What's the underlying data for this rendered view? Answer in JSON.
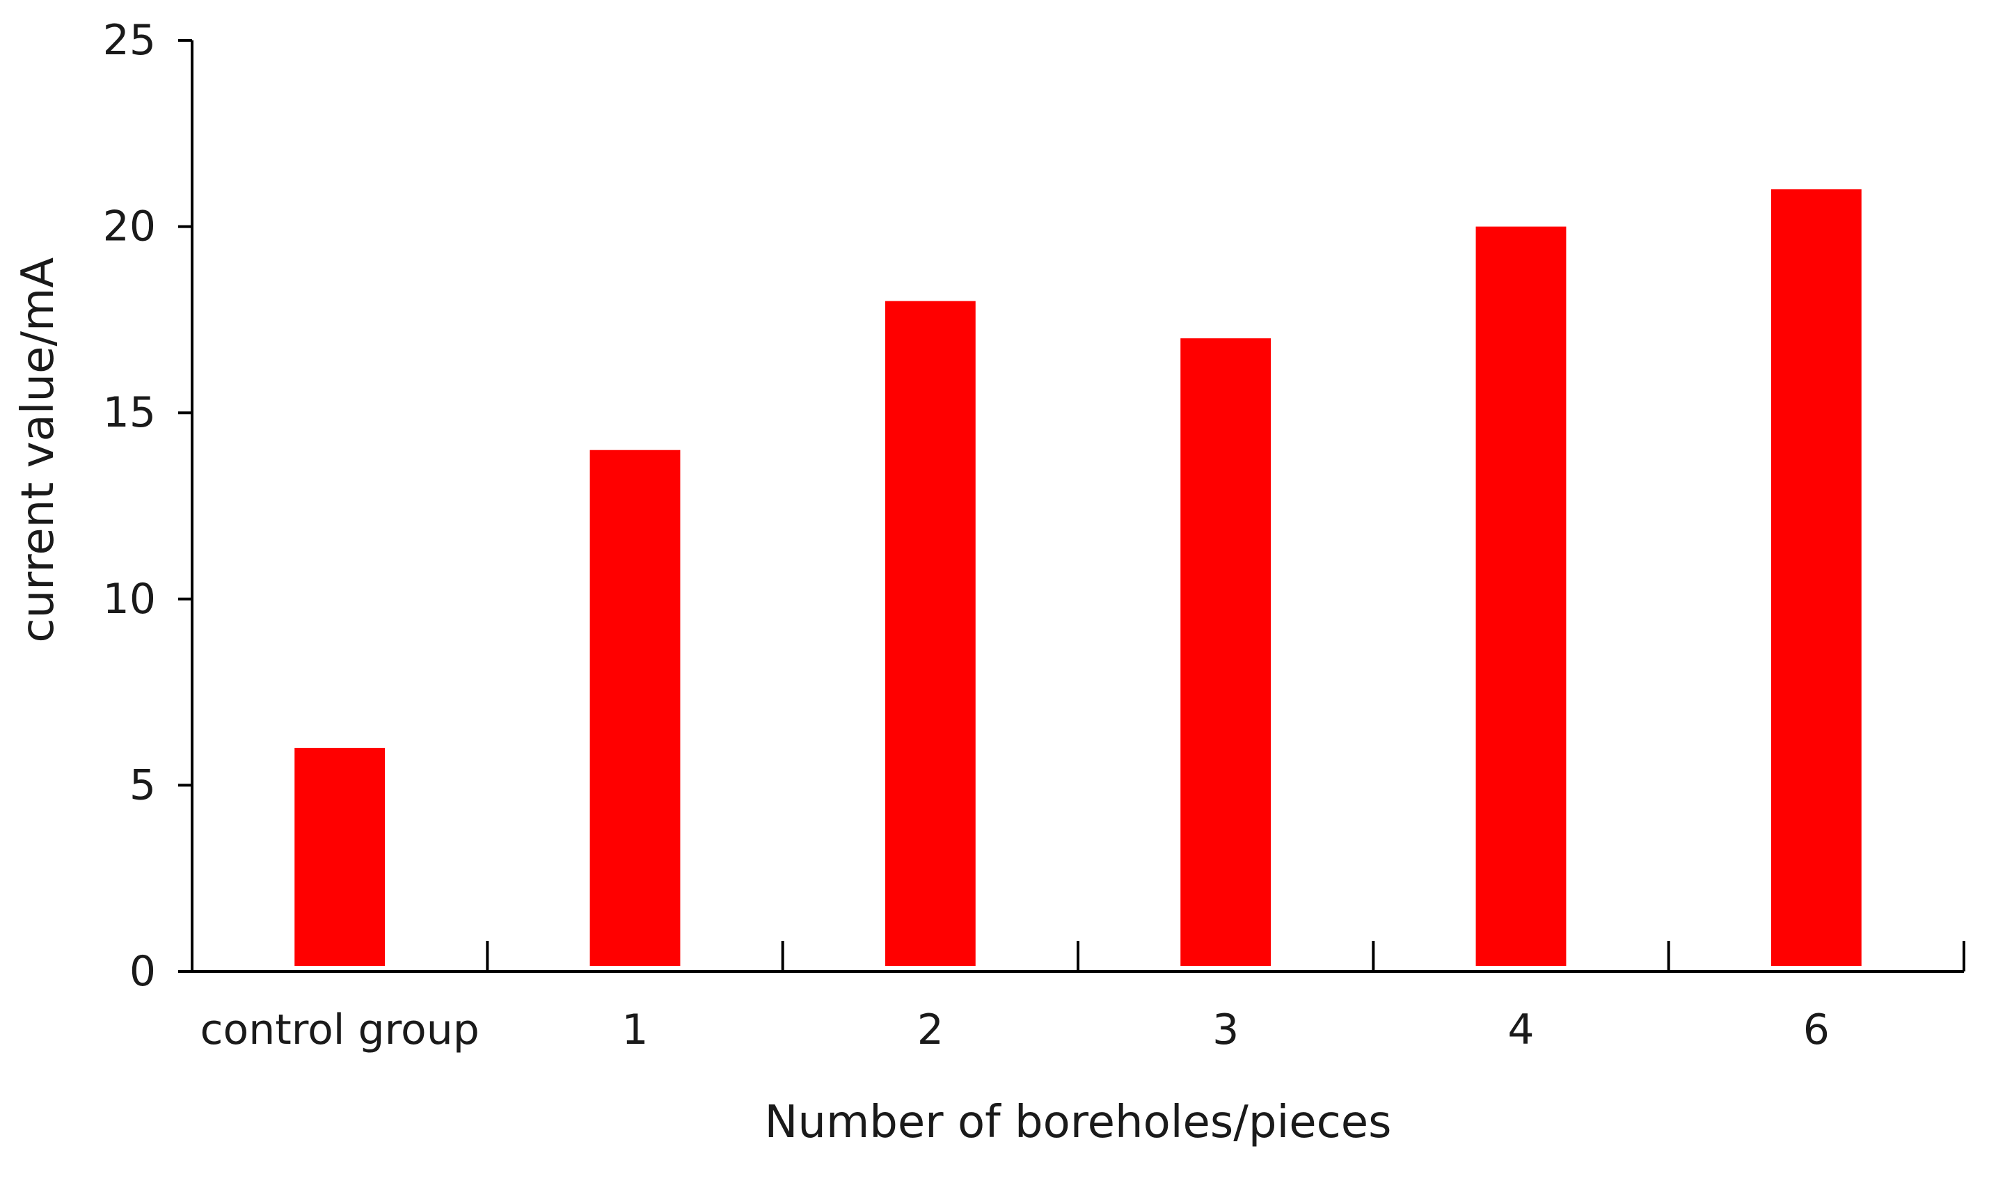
{
  "chart_data": {
    "type": "bar",
    "title": "",
    "xlabel": "Number of boreholes/pieces",
    "ylabel": "current value/mA",
    "categories": [
      "control group",
      "1",
      "2",
      "3",
      "4",
      "6"
    ],
    "values": [
      6,
      14,
      18,
      17,
      20,
      21
    ],
    "ylim": [
      0,
      25
    ],
    "yticks": [
      0,
      5,
      10,
      15,
      20,
      25
    ],
    "grid": false,
    "legend": "none",
    "bar_color": "#ff0000",
    "axis_color": "#000000"
  }
}
